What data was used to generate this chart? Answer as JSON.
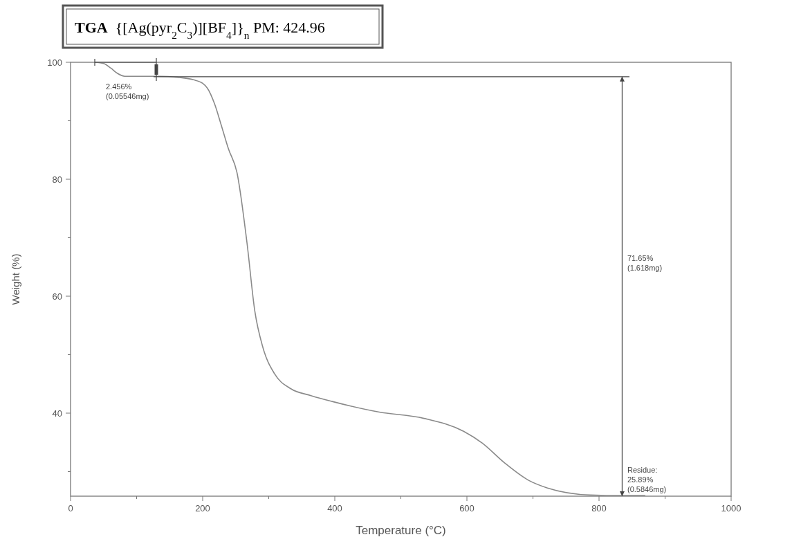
{
  "chart_data": {
    "type": "line",
    "title": "TGA  {[Ag(pyr$_{2}$C$_{3}$)][BF$_{4}$]}$_{n}$ PM: 424.96",
    "xlabel": "Temperature (°C)",
    "ylabel": "Weight (%)",
    "xlim": [
      0,
      1000
    ],
    "ylim": [
      25.8,
      100
    ],
    "xticks": [
      0,
      {
        "value": 100,
        "label": null
      },
      200,
      {
        "value": 300,
        "label": null
      },
      400,
      {
        "value": 500,
        "label": null
      },
      600,
      {
        "value": 700,
        "label": null
      },
      800,
      {
        "value": 900,
        "label": null
      },
      1000
    ],
    "yticks": [
      {
        "value": 30,
        "label": null
      },
      40,
      {
        "value": 50,
        "label": null
      },
      60,
      {
        "value": 70,
        "label": null
      },
      80,
      {
        "value": 90,
        "label": null
      },
      100
    ],
    "grid": false,
    "marker": "none",
    "line_style": "solid",
    "ref_lines": [
      {
        "axis": "y",
        "value": 97.54,
        "color": "#444444"
      },
      {
        "axis": "x",
        "value": 835,
        "color": "#444444"
      }
    ],
    "series": [
      {
        "color": "#8a8a8a",
        "x": [
          37,
          50,
          61,
          71,
          82,
          103,
          134,
          165,
          186,
          200,
          207,
          218,
          228,
          239,
          252,
          267,
          279,
          291,
          309,
          333,
          364,
          396,
          466,
          535,
          595,
          623,
          658,
          692,
          722,
          787,
          836,
          870
        ],
        "values": [
          100,
          99.8,
          99,
          98.1,
          97.6,
          97.6,
          97.6,
          97.4,
          97,
          96.4,
          95.6,
          92.9,
          89.3,
          85.2,
          81.1,
          69.2,
          57.4,
          51.3,
          46.7,
          44.2,
          43,
          42,
          40.2,
          39.1,
          36.9,
          34.9,
          31.4,
          28.6,
          27.2,
          26,
          25.9,
          25.9
        ]
      }
    ],
    "annotations": [
      "2.456%\n(0.05546mg)",
      "71.65%\n(1.618mg)",
      "Residue:\n25.89%\n(0.5846mg)"
    ]
  }
}
